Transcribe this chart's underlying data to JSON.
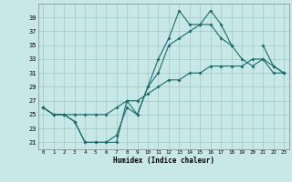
{
  "xlabel": "Humidex (Indice chaleur)",
  "bg_color": "#c8e8e8",
  "line_color": "#1a6b6b",
  "grid_color": "#a0c8c8",
  "x": [
    0,
    1,
    2,
    3,
    4,
    5,
    6,
    7,
    8,
    9,
    10,
    11,
    12,
    13,
    14,
    15,
    16,
    17,
    18,
    19,
    20,
    21,
    22,
    23
  ],
  "line1": [
    26,
    25,
    25,
    24,
    21,
    21,
    21,
    21,
    27,
    25,
    29,
    33,
    36,
    40,
    38,
    38,
    40,
    38,
    35,
    null,
    null,
    35,
    32,
    31
  ],
  "line2": [
    26,
    25,
    25,
    24,
    21,
    21,
    21,
    22,
    26,
    25,
    29,
    31,
    35,
    36,
    37,
    38,
    38,
    36,
    35,
    33,
    32,
    33,
    32,
    31
  ],
  "line3": [
    26,
    25,
    25,
    25,
    25,
    25,
    25,
    26,
    27,
    27,
    28,
    29,
    30,
    30,
    31,
    31,
    32,
    32,
    32,
    32,
    33,
    33,
    31,
    31
  ],
  "ylim": [
    20,
    41
  ],
  "xlim": [
    -0.5,
    23.5
  ],
  "yticks": [
    21,
    23,
    25,
    27,
    29,
    31,
    33,
    35,
    37,
    39
  ],
  "xticks": [
    0,
    1,
    2,
    3,
    4,
    5,
    6,
    7,
    8,
    9,
    10,
    11,
    12,
    13,
    14,
    15,
    16,
    17,
    18,
    19,
    20,
    21,
    22,
    23
  ],
  "markersize": 2.0,
  "linewidth": 0.8
}
